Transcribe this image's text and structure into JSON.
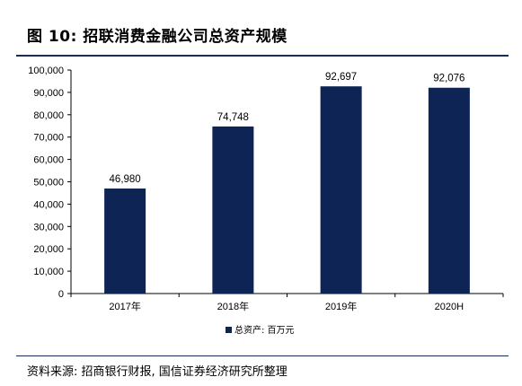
{
  "figure": {
    "title": "图 10:  招联消费金融公司总资产规模",
    "source": "资料来源:  招商银行财报,  国信证券经济研究所整理"
  },
  "chart_data": {
    "type": "bar",
    "categories": [
      "2017年",
      "2018年",
      "2019年",
      "2020H"
    ],
    "series": [
      {
        "name": "总资产:  百万元",
        "values": [
          46980,
          74748,
          92697,
          92076
        ],
        "color": "#0d2454"
      }
    ],
    "data_labels": [
      "46,980",
      "74,748",
      "92,697",
      "92,076"
    ],
    "ylim": [
      0,
      100000
    ],
    "yticks": [
      0,
      10000,
      20000,
      30000,
      40000,
      50000,
      60000,
      70000,
      80000,
      90000,
      100000
    ],
    "ytick_labels": [
      "0",
      "10,000",
      "20,000",
      "30,000",
      "40,000",
      "50,000",
      "60,000",
      "70,000",
      "80,000",
      "90,000",
      "100,000"
    ],
    "grid": false,
    "legend_position": "bottom-center"
  }
}
